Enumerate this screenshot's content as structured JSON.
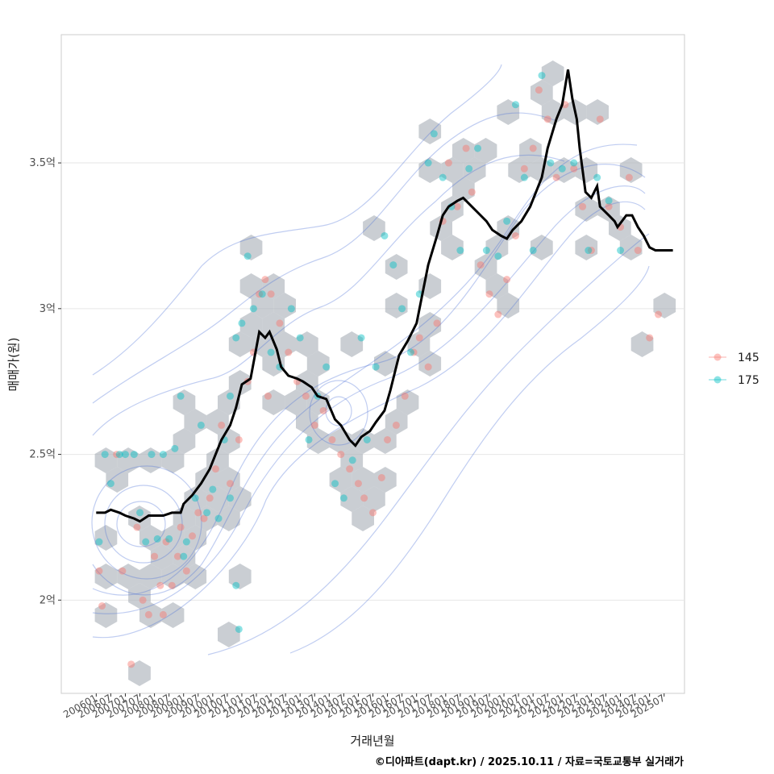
{
  "chart_data": {
    "type": "scatter",
    "xlabel": "거래년월",
    "ylabel": "매매가(원)",
    "caption": "©디아파트(dapt.kr) / 2025.10.11 / 자료=국토교통부 실거래가",
    "y_ticks": [
      {
        "value": 2.0,
        "label": "2억"
      },
      {
        "value": 2.5,
        "label": "2.5억"
      },
      {
        "value": 3.0,
        "label": "3억"
      },
      {
        "value": 3.5,
        "label": "3.5억"
      }
    ],
    "x_ticks": [
      "200601",
      "200607",
      "200701",
      "200707",
      "200801",
      "200807",
      "200901",
      "200907",
      "201001",
      "201007",
      "201101",
      "201107",
      "201201",
      "201207",
      "201301",
      "201307",
      "201401",
      "201407",
      "201501",
      "201507",
      "201601",
      "201607",
      "201701",
      "201707",
      "201801",
      "201807",
      "201901",
      "201907",
      "202001",
      "202007",
      "202101",
      "202107",
      "202201",
      "202207",
      "202301",
      "202307",
      "202401",
      "202407",
      "202501",
      "202507"
    ],
    "legend": {
      "position": "right",
      "entries": [
        {
          "label": "145",
          "color": "#F8766D"
        },
        {
          "label": "175",
          "color": "#00BFC4"
        }
      ]
    },
    "ylim": [
      1.68,
      3.94
    ],
    "xlim": [
      2004.8,
      2026.2
    ],
    "moving_average": {
      "color": "#000000",
      "x": [
        2006.0,
        2006.3,
        2006.5,
        2006.8,
        2007.0,
        2007.3,
        2007.5,
        2007.8,
        2008.0,
        2008.3,
        2008.6,
        2008.9,
        2009.0,
        2009.3,
        2009.6,
        2009.9,
        2010.1,
        2010.3,
        2010.6,
        2010.8,
        2011.0,
        2011.3,
        2011.6,
        2011.8,
        2011.95,
        2012.2,
        2012.35,
        2012.6,
        2012.9,
        2013.1,
        2013.4,
        2013.6,
        2013.9,
        2014.2,
        2014.4,
        2014.7,
        2014.9,
        2015.1,
        2015.4,
        2015.6,
        2015.9,
        2016.1,
        2016.4,
        2016.7,
        2017.0,
        2017.2,
        2017.4,
        2017.7,
        2017.9,
        2018.1,
        2018.4,
        2018.6,
        2018.9,
        2019.1,
        2019.4,
        2019.6,
        2019.9,
        2020.1,
        2020.3,
        2020.6,
        2020.9,
        2021.1,
        2021.3,
        2021.5,
        2021.8,
        2022.0,
        2022.2,
        2022.35,
        2022.5,
        2022.6,
        2022.8,
        2023.0,
        2023.2,
        2023.3,
        2023.6,
        2023.8,
        2023.9,
        2024.2,
        2024.4,
        2024.6,
        2024.8,
        2025.0,
        2025.2,
        2025.4,
        2025.8
      ],
      "y": [
        2.3,
        2.3,
        2.31,
        2.3,
        2.29,
        2.28,
        2.27,
        2.29,
        2.29,
        2.29,
        2.3,
        2.3,
        2.33,
        2.36,
        2.4,
        2.45,
        2.5,
        2.55,
        2.6,
        2.66,
        2.74,
        2.76,
        2.92,
        2.9,
        2.92,
        2.86,
        2.8,
        2.77,
        2.76,
        2.75,
        2.73,
        2.7,
        2.69,
        2.62,
        2.6,
        2.55,
        2.53,
        2.56,
        2.58,
        2.61,
        2.65,
        2.72,
        2.84,
        2.89,
        2.95,
        3.05,
        3.15,
        3.25,
        3.32,
        3.35,
        3.37,
        3.38,
        3.35,
        3.33,
        3.3,
        3.27,
        3.25,
        3.24,
        3.27,
        3.3,
        3.35,
        3.4,
        3.45,
        3.55,
        3.65,
        3.7,
        3.82,
        3.72,
        3.65,
        3.55,
        3.4,
        3.38,
        3.42,
        3.35,
        3.32,
        3.3,
        3.28,
        3.32,
        3.32,
        3.28,
        3.25,
        3.21,
        3.2,
        3.2,
        3.2
      ]
    },
    "series": [
      {
        "name": "145",
        "points": [
          [
            2006.1,
            2.1
          ],
          [
            2006.2,
            1.98
          ],
          [
            2006.7,
            2.5
          ],
          [
            2006.9,
            2.1
          ],
          [
            2007.4,
            2.25
          ],
          [
            2007.6,
            2.0
          ],
          [
            2007.8,
            1.95
          ],
          [
            2008.0,
            2.15
          ],
          [
            2008.2,
            2.05
          ],
          [
            2008.4,
            2.2
          ],
          [
            2008.6,
            2.05
          ],
          [
            2008.8,
            2.15
          ],
          [
            2008.9,
            2.25
          ],
          [
            2009.1,
            2.1
          ],
          [
            2009.3,
            2.22
          ],
          [
            2009.5,
            2.3
          ],
          [
            2009.7,
            2.28
          ],
          [
            2009.9,
            2.35
          ],
          [
            2010.1,
            2.45
          ],
          [
            2010.3,
            2.6
          ],
          [
            2010.6,
            2.4
          ],
          [
            2010.9,
            2.55
          ],
          [
            2011.2,
            2.75
          ],
          [
            2011.4,
            2.85
          ],
          [
            2011.6,
            3.05
          ],
          [
            2011.8,
            3.1
          ],
          [
            2012.0,
            3.05
          ],
          [
            2012.3,
            2.95
          ],
          [
            2012.6,
            2.85
          ],
          [
            2012.9,
            2.75
          ],
          [
            2013.2,
            2.7
          ],
          [
            2013.5,
            2.6
          ],
          [
            2013.8,
            2.65
          ],
          [
            2014.1,
            2.55
          ],
          [
            2014.4,
            2.5
          ],
          [
            2014.7,
            2.45
          ],
          [
            2015.0,
            2.4
          ],
          [
            2015.2,
            2.35
          ],
          [
            2015.5,
            2.3
          ],
          [
            2015.8,
            2.42
          ],
          [
            2016.0,
            2.55
          ],
          [
            2016.3,
            2.6
          ],
          [
            2016.6,
            2.7
          ],
          [
            2016.9,
            2.85
          ],
          [
            2017.1,
            2.9
          ],
          [
            2017.4,
            2.8
          ],
          [
            2017.7,
            2.95
          ],
          [
            2017.9,
            3.3
          ],
          [
            2018.1,
            3.5
          ],
          [
            2018.4,
            3.35
          ],
          [
            2018.7,
            3.55
          ],
          [
            2018.9,
            3.4
          ],
          [
            2019.2,
            3.15
          ],
          [
            2019.5,
            3.05
          ],
          [
            2019.8,
            2.98
          ],
          [
            2020.1,
            3.1
          ],
          [
            2020.4,
            3.25
          ],
          [
            2020.7,
            3.48
          ],
          [
            2021.0,
            3.55
          ],
          [
            2021.2,
            3.75
          ],
          [
            2021.5,
            3.65
          ],
          [
            2021.8,
            3.45
          ],
          [
            2022.1,
            3.7
          ],
          [
            2022.4,
            3.48
          ],
          [
            2022.7,
            3.35
          ],
          [
            2023.0,
            3.2
          ],
          [
            2023.3,
            3.65
          ],
          [
            2023.6,
            3.35
          ],
          [
            2024.0,
            3.28
          ],
          [
            2024.3,
            3.45
          ],
          [
            2024.6,
            3.2
          ],
          [
            2025.0,
            2.9
          ],
          [
            2025.3,
            2.98
          ],
          [
            2008.3,
            1.95
          ],
          [
            2007.2,
            1.78
          ],
          [
            2011.9,
            2.7
          ]
        ]
      },
      {
        "name": "175",
        "points": [
          [
            2006.1,
            2.2
          ],
          [
            2006.3,
            2.5
          ],
          [
            2006.5,
            2.4
          ],
          [
            2006.8,
            2.5
          ],
          [
            2007.0,
            2.5
          ],
          [
            2007.3,
            2.5
          ],
          [
            2007.5,
            2.3
          ],
          [
            2007.7,
            2.2
          ],
          [
            2007.9,
            2.5
          ],
          [
            2008.1,
            2.21
          ],
          [
            2008.3,
            2.5
          ],
          [
            2008.5,
            2.21
          ],
          [
            2008.7,
            2.52
          ],
          [
            2008.9,
            2.7
          ],
          [
            2009.1,
            2.2
          ],
          [
            2009.4,
            2.35
          ],
          [
            2009.6,
            2.6
          ],
          [
            2009.8,
            2.3
          ],
          [
            2010.0,
            2.38
          ],
          [
            2010.2,
            2.28
          ],
          [
            2010.4,
            2.55
          ],
          [
            2010.6,
            2.7
          ],
          [
            2010.8,
            2.9
          ],
          [
            2011.0,
            2.95
          ],
          [
            2011.2,
            3.18
          ],
          [
            2011.4,
            3.0
          ],
          [
            2011.7,
            3.05
          ],
          [
            2012.0,
            2.85
          ],
          [
            2012.3,
            2.8
          ],
          [
            2012.7,
            3.0
          ],
          [
            2013.0,
            2.9
          ],
          [
            2013.3,
            2.55
          ],
          [
            2013.6,
            2.7
          ],
          [
            2013.9,
            2.8
          ],
          [
            2014.2,
            2.4
          ],
          [
            2014.5,
            2.35
          ],
          [
            2014.8,
            2.48
          ],
          [
            2015.1,
            2.9
          ],
          [
            2015.3,
            2.55
          ],
          [
            2015.6,
            2.8
          ],
          [
            2015.9,
            3.25
          ],
          [
            2016.2,
            3.15
          ],
          [
            2016.5,
            3.0
          ],
          [
            2016.8,
            2.85
          ],
          [
            2017.1,
            3.05
          ],
          [
            2017.4,
            3.5
          ],
          [
            2017.6,
            3.6
          ],
          [
            2017.9,
            3.45
          ],
          [
            2018.2,
            3.35
          ],
          [
            2018.5,
            3.2
          ],
          [
            2018.8,
            3.48
          ],
          [
            2019.1,
            3.55
          ],
          [
            2019.4,
            3.2
          ],
          [
            2019.8,
            3.18
          ],
          [
            2020.1,
            3.3
          ],
          [
            2020.4,
            3.7
          ],
          [
            2020.7,
            3.45
          ],
          [
            2021.0,
            3.2
          ],
          [
            2021.3,
            3.8
          ],
          [
            2021.6,
            3.5
          ],
          [
            2022.0,
            3.48
          ],
          [
            2022.4,
            3.5
          ],
          [
            2022.9,
            3.2
          ],
          [
            2023.2,
            3.45
          ],
          [
            2023.6,
            3.37
          ],
          [
            2024.0,
            3.2
          ],
          [
            2010.8,
            2.05
          ],
          [
            2010.9,
            1.9
          ],
          [
            2010.6,
            2.35
          ],
          [
            2009.0,
            2.15
          ]
        ]
      }
    ]
  }
}
